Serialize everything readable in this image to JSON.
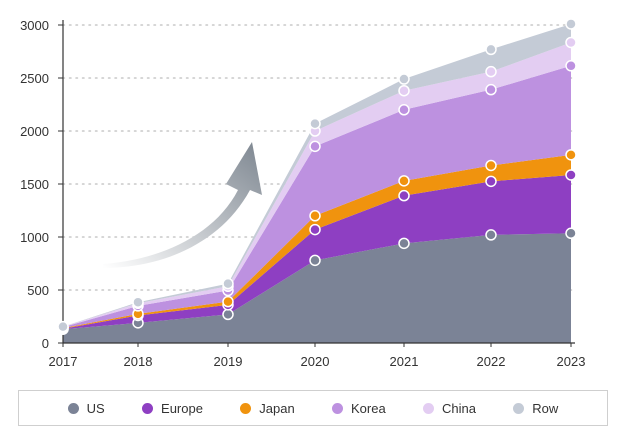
{
  "chart_data": {
    "type": "area",
    "stacked": true,
    "x": [
      "2017",
      "2018",
      "2019",
      "2020",
      "2021",
      "2022",
      "2023"
    ],
    "ylim": [
      0,
      3000
    ],
    "yticks": [
      0,
      500,
      1000,
      1500,
      2000,
      2500,
      3000
    ],
    "grid": "horizontal dotted",
    "legend_position": "bottom",
    "annotation": "upward arrow",
    "series": [
      {
        "name": "US",
        "color": "#7b8396",
        "values": [
          130,
          190,
          270,
          780,
          940,
          1020,
          1035
        ]
      },
      {
        "name": "Europe",
        "color": "#8e3fc2",
        "values": [
          5,
          70,
          90,
          290,
          450,
          505,
          550
        ]
      },
      {
        "name": "Japan",
        "color": "#f0930e",
        "values": [
          5,
          15,
          30,
          130,
          140,
          150,
          190
        ]
      },
      {
        "name": "Korea",
        "color": "#bd91e0",
        "values": [
          10,
          75,
          105,
          655,
          670,
          715,
          840
        ]
      },
      {
        "name": "China",
        "color": "#e3cdf2",
        "values": [
          3,
          25,
          40,
          145,
          180,
          170,
          220
        ]
      },
      {
        "name": "Row",
        "color": "#c4cbd6",
        "values": [
          2,
          10,
          25,
          70,
          110,
          210,
          175
        ]
      }
    ]
  }
}
